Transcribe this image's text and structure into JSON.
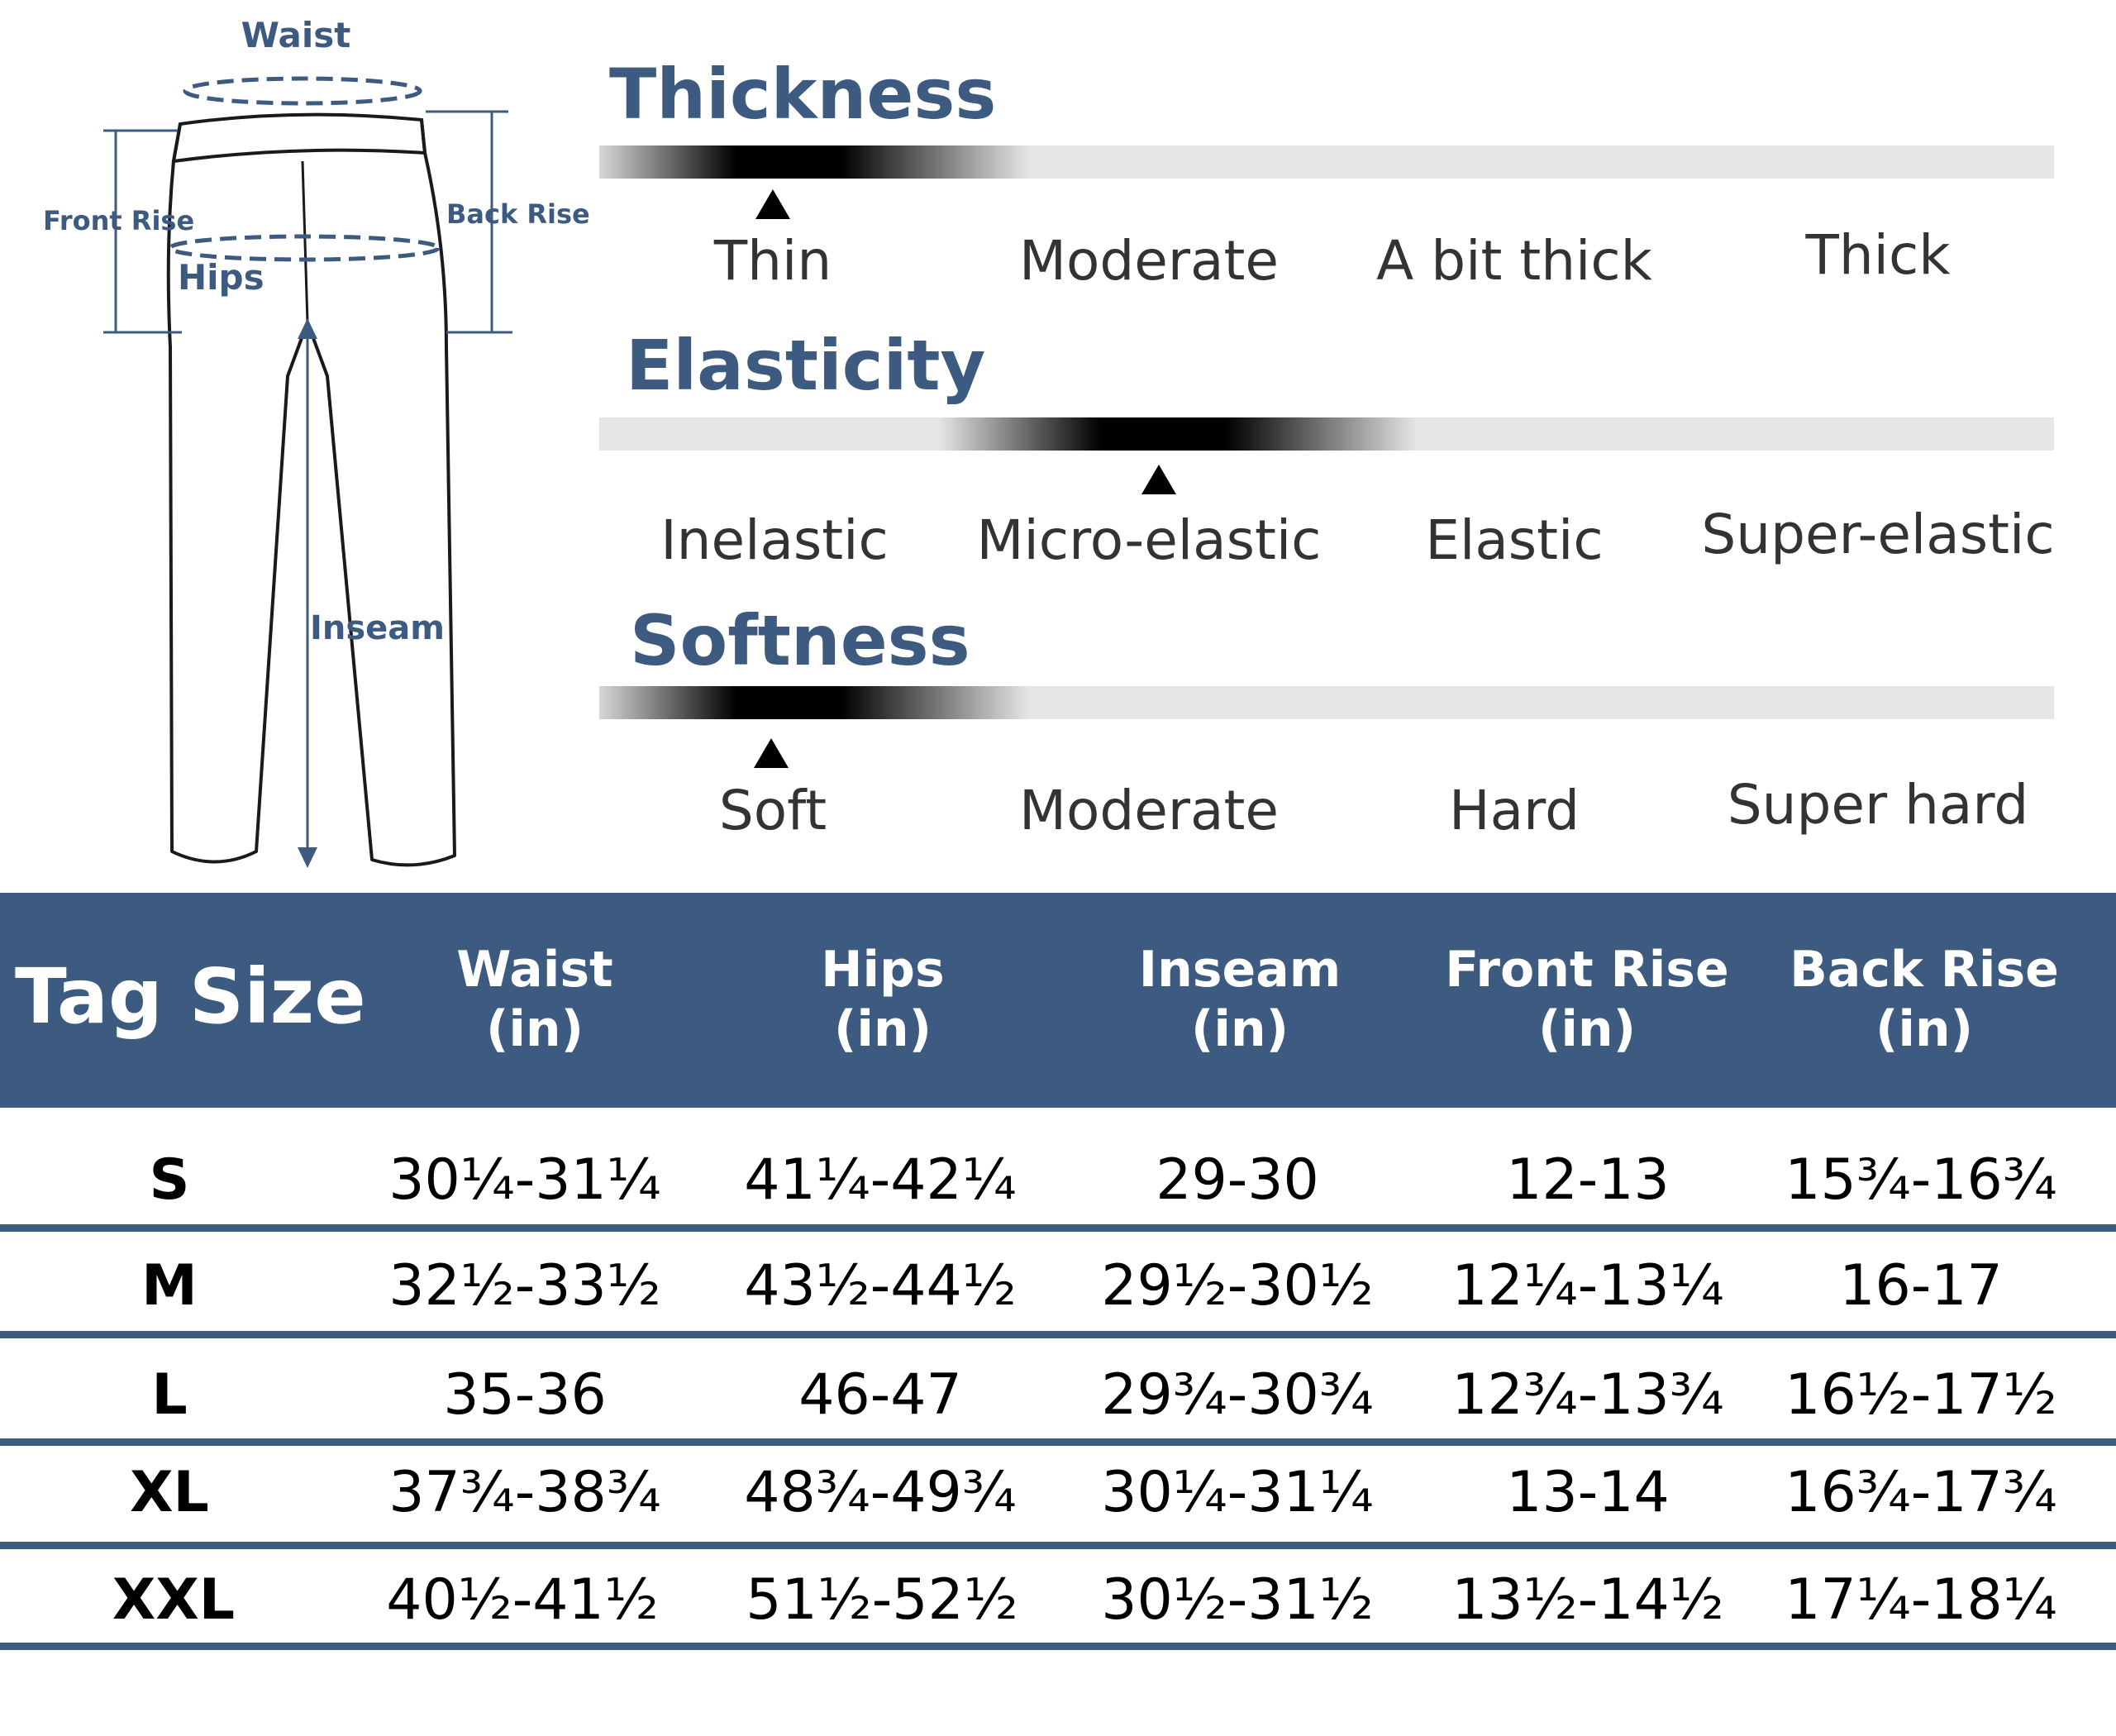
{
  "diagram": {
    "labels": {
      "waist": "Waist",
      "front_rise": "Front Rise",
      "back_rise": "Back Rise",
      "hips": "Hips",
      "inseam": "Inseam"
    },
    "accent_color": "#3d5a80"
  },
  "properties": [
    {
      "title": "Thickness",
      "levels": [
        "Thin",
        "Moderate",
        "A bit thick",
        "Thick"
      ],
      "selected_index": 0,
      "selected": "Thin"
    },
    {
      "title": "Elasticity",
      "levels": [
        "Inelastic",
        "Micro-elastic",
        "Elastic",
        "Super-elastic"
      ],
      "selected_index": 1,
      "selected": "Micro-elastic"
    },
    {
      "title": "Softness",
      "levels": [
        "Soft",
        "Moderate",
        "Hard",
        "Super hard"
      ],
      "selected_index": 0,
      "selected": "Soft"
    }
  ],
  "size_table": {
    "header_color": "#3d5a80",
    "title": "Tag Size",
    "columns": [
      {
        "name": "Waist",
        "unit": "(in)"
      },
      {
        "name": "Hips",
        "unit": "(in)"
      },
      {
        "name": "Inseam",
        "unit": "(in)"
      },
      {
        "name": "Front Rise",
        "unit": "(in)"
      },
      {
        "name": "Back Rise",
        "unit": "(in)"
      }
    ],
    "rows": [
      {
        "size": "S",
        "values": [
          "30¼-31¼",
          "41¼-42¼",
          "29-30",
          "12-13",
          "15¾-16¾"
        ]
      },
      {
        "size": "M",
        "values": [
          "32½-33½",
          "43½-44½",
          "29½-30½",
          "12¼-13¼",
          "16-17"
        ]
      },
      {
        "size": "L",
        "values": [
          "35-36",
          "46-47",
          "29¾-30¾",
          "12¾-13¾",
          "16½-17½"
        ]
      },
      {
        "size": "XL",
        "values": [
          "37¾-38¾",
          "48¾-49¾",
          "30¼-31¼",
          "13-14",
          "16¾-17¾"
        ]
      },
      {
        "size": "XXL",
        "values": [
          "40½-41½",
          "51½-52½",
          "30½-31½",
          "13½-14½",
          "17¼-18¼"
        ]
      }
    ]
  }
}
